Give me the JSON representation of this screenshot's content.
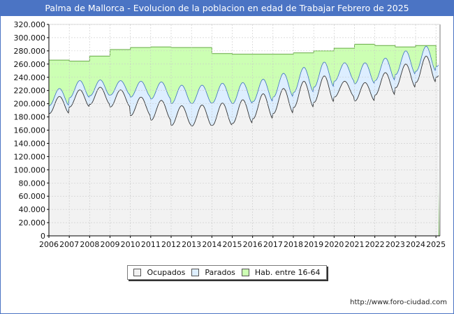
{
  "chart_data": {
    "type": "area",
    "title": "Palma de Mallorca - Evolucion de la poblacion en edad de Trabajar Febrero de 2025",
    "xlabel": "",
    "ylabel": "",
    "ylim": [
      0,
      320000
    ],
    "xlim": [
      2006,
      2025.2
    ],
    "grid": true,
    "yticks": [
      0,
      20000,
      40000,
      60000,
      80000,
      100000,
      120000,
      140000,
      160000,
      180000,
      200000,
      220000,
      240000,
      260000,
      280000,
      300000,
      320000
    ],
    "ytick_labels": [
      "0",
      "20.000",
      "40.000",
      "60.000",
      "80.000",
      "100.000",
      "120.000",
      "140.000",
      "160.000",
      "180.000",
      "200.000",
      "220.000",
      "240.000",
      "260.000",
      "280.000",
      "300.000",
      "320.000"
    ],
    "xticks": [
      "2006",
      "2007",
      "2008",
      "2009",
      "2010",
      "2011",
      "2012",
      "2013",
      "2014",
      "2015",
      "2016",
      "2017",
      "2018",
      "2019",
      "2020",
      "2021",
      "2022",
      "2023",
      "2024",
      "2025"
    ],
    "series": [
      {
        "name": "Hab. entre 16-64",
        "color": "#ccffb3",
        "kind": "yearly-step",
        "years": [
          2006,
          2007,
          2008,
          2009,
          2010,
          2011,
          2012,
          2013,
          2014,
          2015,
          2016,
          2017,
          2018,
          2019,
          2020,
          2021,
          2022,
          2023,
          2024
        ],
        "values": [
          266000,
          264500,
          272000,
          282000,
          285000,
          286000,
          285000,
          285000,
          276000,
          275000,
          275000,
          275000,
          277000,
          280000,
          284000,
          290000,
          288000,
          286000,
          288000
        ]
      },
      {
        "name": "Parados",
        "color": "#ddeeff",
        "kind": "monthly-seasonal",
        "annual_mean": [
          210000,
          222000,
          224000,
          224000,
          222000,
          220000,
          214000,
          214000,
          216000,
          216000,
          220000,
          228000,
          236000,
          244000,
          248000,
          246000,
          252000,
          262000,
          268000,
          268000
        ],
        "annual_amplitude": [
          13000,
          13000,
          12000,
          11000,
          12000,
          13000,
          14000,
          14000,
          15000,
          16000,
          17000,
          18000,
          19000,
          19000,
          14000,
          16000,
          17000,
          18000,
          19000,
          12000
        ]
      },
      {
        "name": "Ocupados",
        "color": "#f2f2f2",
        "kind": "monthly-seasonal",
        "annual_mean": [
          198000,
          208000,
          212000,
          208000,
          196000,
          190000,
          182000,
          182000,
          184000,
          188000,
          196000,
          204000,
          214000,
          222000,
          222000,
          218000,
          230000,
          242000,
          252000,
          252000
        ],
        "annual_amplitude": [
          13000,
          13000,
          13000,
          13000,
          14000,
          15000,
          15000,
          16000,
          17000,
          18000,
          19000,
          19000,
          20000,
          20000,
          12000,
          14000,
          17000,
          18000,
          20000,
          12000
        ]
      }
    ],
    "legend": [
      "Ocupados",
      "Parados",
      "Hab. entre 16-64"
    ],
    "legend_position": "bottom-center",
    "source": "http://www.foro-ciudad.com"
  }
}
